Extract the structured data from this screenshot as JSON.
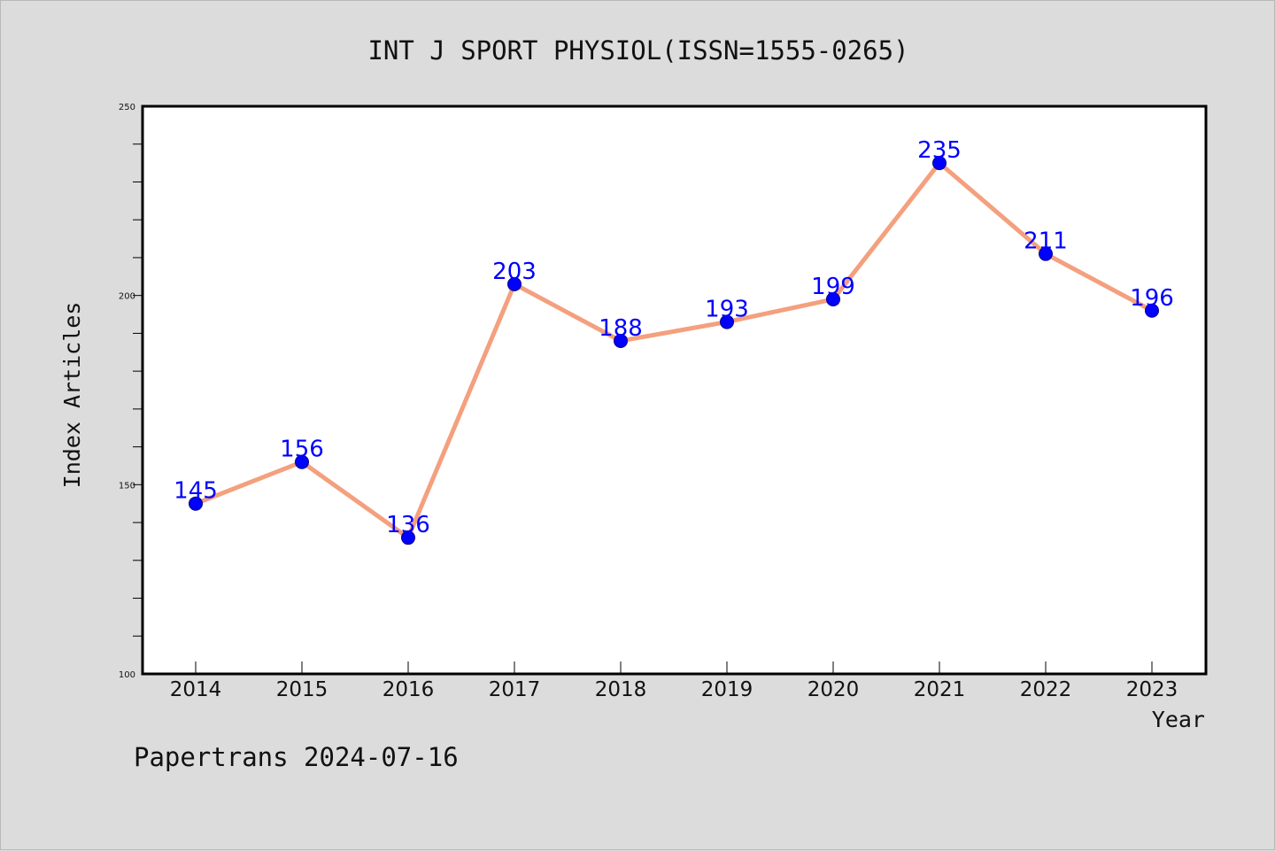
{
  "chart_data": {
    "type": "line",
    "title": "INT J SPORT PHYSIOL(ISSN=1555-0265)",
    "xlabel": "Year",
    "ylabel": "Index Articles",
    "categories": [
      "2014",
      "2015",
      "2016",
      "2017",
      "2018",
      "2019",
      "2020",
      "2021",
      "2022",
      "2023"
    ],
    "series": [
      {
        "values": [
          145,
          156,
          136,
          203,
          188,
          193,
          199,
          235,
          211,
          196
        ],
        "line_color": "#f4a07e",
        "marker_color": "#0000ff"
      }
    ],
    "data_labels": [
      "145",
      "156",
      "136",
      "203",
      "188",
      "193",
      "199",
      "235",
      "211",
      "196"
    ],
    "ylim": [
      100,
      250
    ],
    "yticks": [
      "100",
      "150",
      "200",
      "250"
    ],
    "grid": false,
    "legend": "none"
  },
  "footer": {
    "text": "Papertrans 2024-07-16"
  },
  "colors": {
    "background": "#dcdcdc",
    "plot_background": "#ffffff",
    "axis": "#000000",
    "label_text": "#0000ff"
  }
}
